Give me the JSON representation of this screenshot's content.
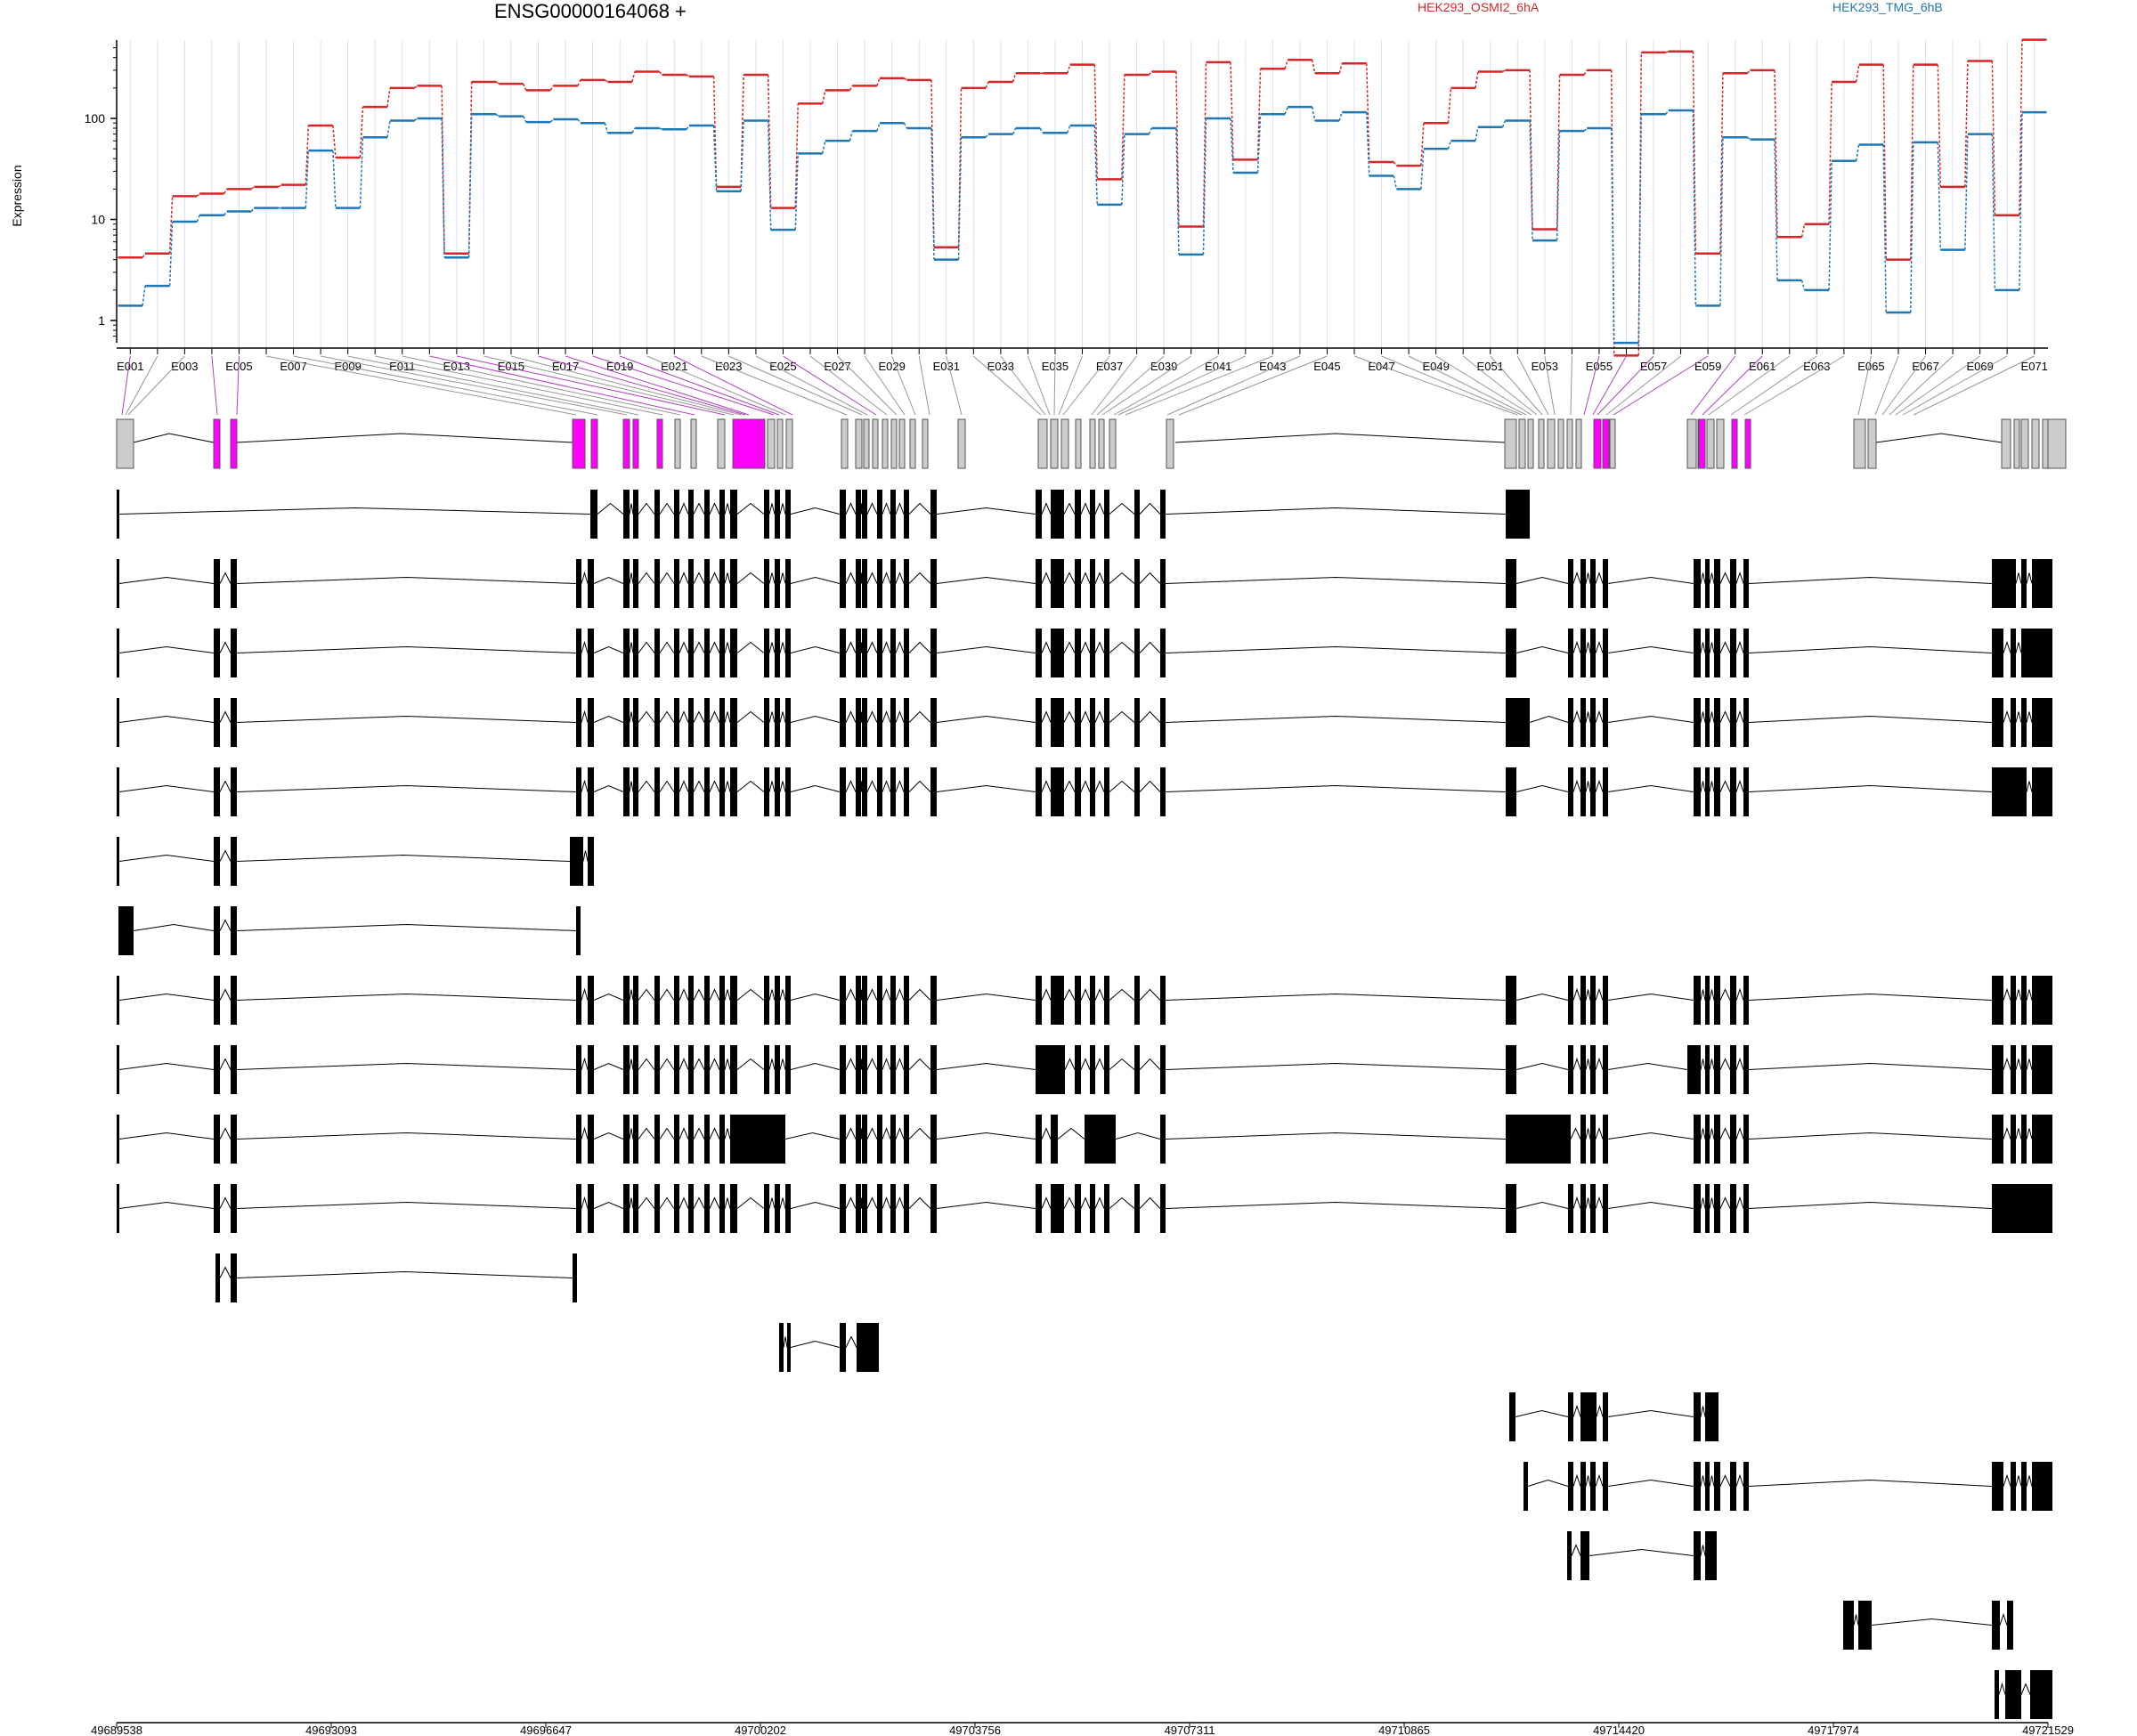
{
  "chart_data": {
    "type": "line",
    "title": "ENSG00000164068 +",
    "ylabel": "Expression",
    "yscale": "log",
    "yticks": [
      "1",
      "10",
      "100"
    ],
    "legend": [
      {
        "name": "HEK293_OSMI2_6hA",
        "color": "#d62728"
      },
      {
        "name": "HEK293_TMG_6hB",
        "color": "#1f77b4"
      }
    ],
    "exon_labels": [
      "E001",
      "E003",
      "E005",
      "E007",
      "E009",
      "E011",
      "E013",
      "E015",
      "E017",
      "E019",
      "E021",
      "E023",
      "E025",
      "E027",
      "E029",
      "E031",
      "E033",
      "E035",
      "E037",
      "E039",
      "E041",
      "E043",
      "E045",
      "E047",
      "E049",
      "E051",
      "E053",
      "E055",
      "E057",
      "E059",
      "E061",
      "E063",
      "E065",
      "E067",
      "E069",
      "E071"
    ],
    "highlighted_exons": [
      "E001",
      "E004",
      "E005",
      "E012",
      "E013",
      "E016",
      "E017",
      "E018",
      "E019",
      "E021",
      "E025",
      "E055",
      "E056",
      "E057",
      "E059",
      "E060",
      "E061"
    ],
    "series": [
      {
        "name": "HEK293_OSMI2_6hA",
        "values": [
          4.2,
          4.6,
          17,
          18,
          20,
          21,
          22,
          85,
          41,
          130,
          200,
          210,
          4.6,
          230,
          220,
          190,
          210,
          240,
          230,
          290,
          270,
          260,
          21,
          270,
          13,
          140,
          190,
          210,
          250,
          240,
          5.3,
          200,
          230,
          280,
          280,
          340,
          25,
          270,
          290,
          8.5,
          360,
          39,
          310,
          380,
          280,
          350,
          37,
          34,
          90,
          200,
          290,
          300,
          8,
          270,
          300,
          0.45,
          450,
          460,
          4.6,
          280,
          300,
          6.7,
          9,
          230,
          340,
          4,
          340,
          21,
          370,
          11,
          600
        ]
      },
      {
        "name": "HEK293_TMG_6hB",
        "values": [
          1.4,
          2.2,
          9.5,
          11,
          12,
          13,
          13,
          48,
          13,
          65,
          95,
          100,
          4.2,
          110,
          105,
          92,
          98,
          90,
          72,
          80,
          78,
          85,
          19,
          95,
          7.9,
          45,
          60,
          75,
          90,
          80,
          4,
          65,
          70,
          80,
          72,
          85,
          14,
          70,
          80,
          4.5,
          100,
          29,
          110,
          130,
          95,
          115,
          27,
          20,
          50,
          60,
          82,
          95,
          6.2,
          75,
          80,
          0.6,
          110,
          120,
          1.4,
          65,
          62,
          2.5,
          2,
          38,
          55,
          1.2,
          58,
          5,
          70,
          2,
          115
        ]
      }
    ],
    "xticks": [
      "49689538",
      "49693093",
      "49696647",
      "49700202",
      "49703756",
      "49707311",
      "49710865",
      "49714420",
      "49717974",
      "49721529"
    ]
  }
}
